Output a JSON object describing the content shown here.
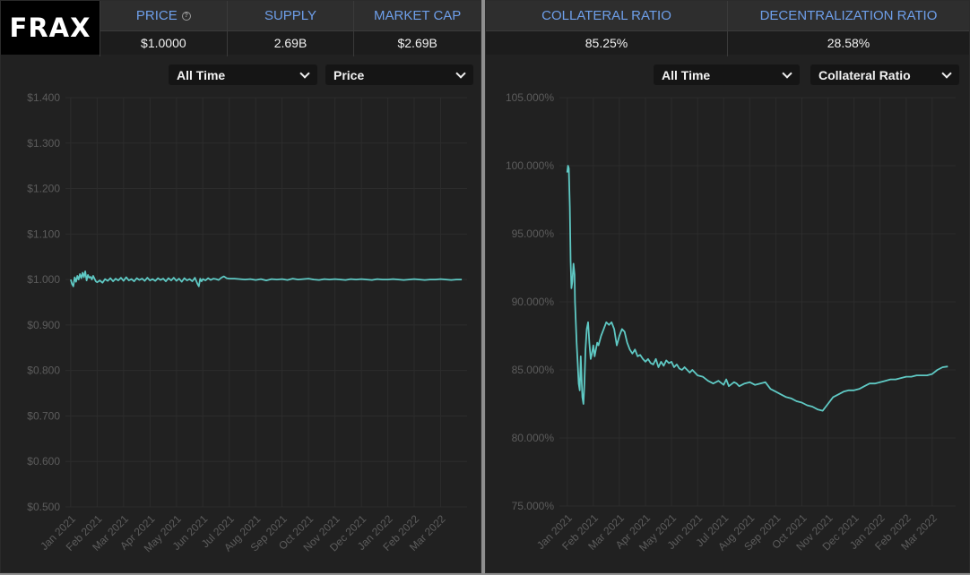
{
  "logo": "FRAX",
  "stats_left": [
    {
      "label": "PRICE",
      "value": "$1.0000",
      "help": true
    },
    {
      "label": "SUPPLY",
      "value": "2.69B"
    },
    {
      "label": "MARKET CAP",
      "value": "$2.69B"
    }
  ],
  "stats_right": [
    {
      "label": "COLLATERAL RATIO",
      "value": "85.25%"
    },
    {
      "label": "DECENTRALIZATION RATIO",
      "value": "28.58%"
    }
  ],
  "left_controls": {
    "range": "All Time",
    "metric": "Price"
  },
  "right_controls": {
    "range": "All Time",
    "metric": "Collateral Ratio"
  },
  "colors": {
    "line": "#5fc9c4",
    "grid": "#2c2c2c",
    "accent_label": "#6e9fea"
  },
  "chart_data": [
    {
      "type": "line",
      "title": "",
      "ylabel": "",
      "xlabel": "",
      "ylim": [
        0.5,
        1.4
      ],
      "yticks": [
        1.4,
        1.3,
        1.2,
        1.1,
        1.0,
        0.9,
        0.8,
        0.7,
        0.6,
        0.5
      ],
      "ytick_labels": [
        "$1.400",
        "$1.300",
        "$1.200",
        "$1.100",
        "$1.000",
        "$0.900",
        "$0.800",
        "$0.700",
        "$0.600",
        "$0.500"
      ],
      "xtick_labels": [
        "Jan 2021",
        "Feb 2021",
        "Mar 2021",
        "Apr 2021",
        "May 2021",
        "Jun 2021",
        "Jul 2021",
        "Aug 2021",
        "Sep 2021",
        "Oct 2021",
        "Nov 2021",
        "Dec 2021",
        "Jan 2022",
        "Feb 2022",
        "Mar 2022"
      ],
      "xlim": [
        -0.2,
        15.0
      ],
      "series": [
        {
          "x": [
            0.0,
            0.05,
            0.1,
            0.15,
            0.2,
            0.25,
            0.3,
            0.35,
            0.4,
            0.45,
            0.5,
            0.55,
            0.6,
            0.65,
            0.7,
            0.75,
            0.8,
            0.85,
            0.9,
            0.95,
            1.0,
            1.1,
            1.2,
            1.3,
            1.4,
            1.5,
            1.6,
            1.7,
            1.8,
            1.9,
            2.0,
            2.1,
            2.2,
            2.3,
            2.4,
            2.5,
            2.6,
            2.7,
            2.8,
            2.9,
            3.0,
            3.1,
            3.2,
            3.3,
            3.4,
            3.5,
            3.6,
            3.7,
            3.8,
            3.9,
            4.0,
            4.1,
            4.2,
            4.3,
            4.4,
            4.5,
            4.6,
            4.7,
            4.8,
            4.85,
            4.9,
            4.95,
            5.0,
            5.1,
            5.2,
            5.3,
            5.4,
            5.5,
            5.6,
            5.7,
            5.8,
            5.9,
            6.0,
            6.2,
            6.4,
            6.6,
            6.8,
            7.0,
            7.2,
            7.4,
            7.6,
            7.8,
            8.0,
            8.2,
            8.4,
            8.6,
            8.8,
            9.0,
            9.2,
            9.4,
            9.6,
            9.8,
            10.0,
            10.2,
            10.4,
            10.6,
            10.8,
            11.0,
            11.2,
            11.4,
            11.6,
            11.8,
            12.0,
            12.2,
            12.4,
            12.6,
            12.8,
            13.0,
            13.2,
            13.4,
            13.6,
            13.8,
            14.0,
            14.2,
            14.4,
            14.6,
            14.8
          ],
          "y": [
            1.0,
            0.99,
            0.985,
            1.005,
            0.995,
            1.008,
            1.0,
            1.012,
            1.003,
            1.015,
            1.005,
            1.018,
            0.998,
            1.01,
            1.004,
            1.006,
            1.0,
            1.008,
            1.002,
            0.996,
            0.994,
            0.998,
            0.993,
            1.001,
            0.997,
            1.003,
            0.996,
            1.002,
            0.998,
            1.004,
            0.997,
            1.005,
            0.998,
            1.001,
            0.996,
            1.003,
            0.999,
            1.002,
            0.997,
            1.004,
            0.998,
            1.001,
            0.997,
            1.003,
            0.999,
            1.002,
            0.996,
            1.003,
            0.998,
            1.004,
            0.997,
            1.002,
            0.995,
            1.003,
            0.998,
            1.001,
            0.996,
            1.004,
            0.99,
            0.985,
            1.002,
            0.996,
            1.001,
            0.998,
            1.003,
            0.999,
            1.002,
            1.001,
            0.999,
            1.004,
            1.007,
            1.003,
            1.002,
            1.002,
            1.001,
            1.0,
            1.001,
            0.999,
            1.001,
            0.998,
            1.001,
            1.0,
            1.001,
            0.999,
            1.002,
            1.0,
            1.001,
            1.002,
            1.0,
            0.999,
            1.001,
            1.0,
            1.001,
            1.0,
            0.999,
            1.001,
            1.0,
            1.001,
            1.0,
            0.999,
            1.001,
            1.0,
            1.0,
            1.001,
            1.0,
            0.999,
            1.0,
            1.001,
            1.0,
            0.999,
            1.0,
            1.0,
            1.001,
            1.0,
            0.999,
            1.0,
            1.0
          ]
        }
      ]
    },
    {
      "type": "line",
      "title": "",
      "ylabel": "",
      "xlabel": "",
      "ylim": [
        75,
        105
      ],
      "yticks": [
        105,
        100,
        95,
        90,
        85,
        80,
        75
      ],
      "ytick_labels": [
        "105.000%",
        "100.000%",
        "95.000%",
        "90.000%",
        "85.000%",
        "80.000%",
        "75.000%"
      ],
      "xtick_labels": [
        "Jan 2021",
        "Feb 2021",
        "Mar 2021",
        "Apr 2021",
        "May 2021",
        "Jun 2021",
        "Jul 2021",
        "Aug 2021",
        "Sep 2021",
        "Oct 2021",
        "Nov 2021",
        "Dec 2021",
        "Jan 2022",
        "Feb 2022",
        "Mar 2022"
      ],
      "xlim": [
        -0.3,
        14.9
      ],
      "series": [
        {
          "x": [
            0.0,
            0.03,
            0.06,
            0.1,
            0.13,
            0.16,
            0.2,
            0.24,
            0.28,
            0.3,
            0.33,
            0.36,
            0.4,
            0.44,
            0.48,
            0.52,
            0.55,
            0.58,
            0.62,
            0.66,
            0.7,
            0.75,
            0.8,
            0.85,
            0.9,
            0.95,
            1.0,
            1.05,
            1.1,
            1.15,
            1.2,
            1.3,
            1.4,
            1.5,
            1.6,
            1.7,
            1.8,
            1.9,
            2.0,
            2.1,
            2.2,
            2.3,
            2.4,
            2.5,
            2.6,
            2.7,
            2.8,
            2.9,
            3.0,
            3.1,
            3.2,
            3.3,
            3.4,
            3.5,
            3.6,
            3.7,
            3.8,
            3.9,
            4.0,
            4.1,
            4.2,
            4.3,
            4.4,
            4.5,
            4.6,
            4.7,
            4.8,
            4.9,
            5.0,
            5.2,
            5.4,
            5.6,
            5.8,
            6.0,
            6.1,
            6.2,
            6.4,
            6.5,
            6.6,
            6.8,
            7.0,
            7.2,
            7.4,
            7.6,
            7.8,
            8.0,
            8.2,
            8.4,
            8.6,
            8.8,
            9.0,
            9.2,
            9.4,
            9.6,
            9.8,
            10.0,
            10.2,
            10.4,
            10.6,
            10.8,
            11.0,
            11.2,
            11.4,
            11.6,
            11.8,
            12.0,
            12.2,
            12.4,
            12.6,
            12.8,
            13.0,
            13.2,
            13.4,
            13.6,
            13.8,
            14.0,
            14.2,
            14.4,
            14.6
          ],
          "y": [
            99.5,
            100.0,
            99.8,
            97.0,
            93.0,
            91.0,
            91.5,
            92.8,
            92.0,
            90.0,
            88.5,
            87.0,
            85.5,
            84.0,
            83.5,
            86.0,
            84.5,
            83.0,
            82.5,
            84.0,
            86.5,
            88.0,
            88.5,
            87.0,
            85.8,
            86.2,
            86.8,
            86.0,
            86.5,
            87.0,
            86.8,
            87.5,
            88.0,
            88.5,
            88.3,
            88.5,
            88.0,
            86.8,
            87.5,
            88.0,
            87.8,
            87.0,
            86.5,
            86.2,
            86.5,
            86.0,
            86.1,
            85.8,
            85.6,
            85.8,
            85.5,
            85.4,
            85.8,
            85.2,
            85.6,
            85.3,
            85.7,
            85.5,
            85.6,
            85.2,
            85.4,
            85.1,
            85.0,
            85.2,
            85.0,
            84.8,
            85.0,
            84.8,
            84.6,
            84.5,
            84.2,
            84.0,
            84.2,
            83.9,
            84.3,
            83.8,
            84.1,
            84.0,
            83.8,
            84.0,
            84.1,
            83.9,
            84.0,
            84.1,
            83.6,
            83.4,
            83.2,
            83.0,
            82.9,
            82.7,
            82.6,
            82.4,
            82.3,
            82.1,
            82.0,
            82.5,
            83.0,
            83.2,
            83.4,
            83.5,
            83.5,
            83.6,
            83.8,
            84.0,
            84.0,
            84.1,
            84.2,
            84.3,
            84.3,
            84.4,
            84.5,
            84.5,
            84.6,
            84.6,
            84.6,
            84.7,
            85.0,
            85.2,
            85.25
          ]
        }
      ]
    }
  ]
}
